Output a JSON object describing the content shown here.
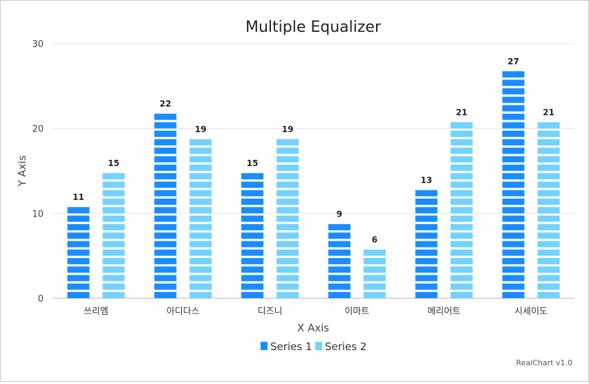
{
  "chart_data": {
    "type": "bar",
    "title": "Multiple Equalizer",
    "xlabel": "X Axis",
    "ylabel": "Y Axis",
    "ylim": [
      0,
      30
    ],
    "yticks": [
      0,
      10,
      20,
      30
    ],
    "categories": [
      "쓰리엠",
      "아디다스",
      "디즈니",
      "이마트",
      "메리어트",
      "시세이도"
    ],
    "series": [
      {
        "name": "Series 1",
        "values": [
          11,
          22,
          15,
          9,
          13,
          27
        ],
        "color": "#1a8cff"
      },
      {
        "name": "Series 2",
        "values": [
          15,
          19,
          19,
          6,
          21,
          21
        ],
        "color": "#73d2ff"
      }
    ],
    "grid": true,
    "legend_position": "bottom-center",
    "style": "equalizer segments"
  },
  "credit": "RealChart v1.0"
}
